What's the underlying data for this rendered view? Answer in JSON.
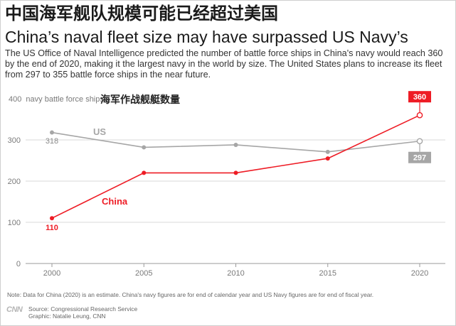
{
  "header": {
    "title_cn": "中国海军舰队规模可能已经超过美国",
    "title_en": "China’s naval fleet size may have surpassed US Navy’s",
    "description": "The US Office of Naval Intelligence predicted the number of battle force ships in China's navy would reach 360 by the end of 2020, making it the largest navy in the world by size. The United States plans to increase its fleet from 297 to 355 battle force ships in the near future."
  },
  "chart_data": {
    "type": "line",
    "title": "",
    "ylabel_en": "navy battle force ships",
    "ylabel_cn": "海军作战舰艇数量",
    "xlabel": "",
    "x": [
      2000,
      2005,
      2010,
      2015,
      2020
    ],
    "xticks": [
      "2000",
      "2005",
      "2010",
      "2015",
      "2020"
    ],
    "yticks": [
      "0",
      "100",
      "200",
      "300",
      "400"
    ],
    "ylim": [
      0,
      400
    ],
    "grid": true,
    "series": [
      {
        "name": "US",
        "color": "#a6a6a6",
        "values": [
          318,
          282,
          288,
          271,
          297
        ],
        "start_label": "318",
        "end_label": "297"
      },
      {
        "name": "China",
        "color": "#ee1c25",
        "values": [
          110,
          220,
          220,
          255,
          360
        ],
        "start_label": "110",
        "end_label": "360"
      }
    ]
  },
  "footer": {
    "note": "Note: Data for China (2020) is an estimate. China's navy figures are for end of calendar year and US Navy figures are for end of fiscal year.",
    "logo": "CNN",
    "source": "Source: Congressional Research Service",
    "graphic": "Graphic: Natalie Leung, CNN"
  }
}
